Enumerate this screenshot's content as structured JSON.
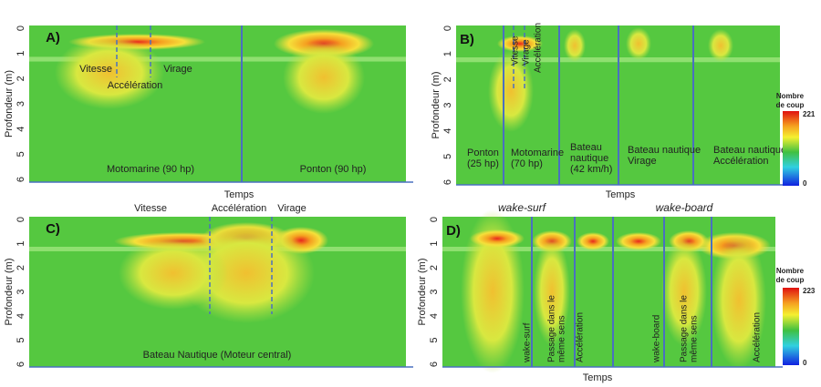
{
  "panels": [
    {
      "label": "A)",
      "y_axis_label": "Profondeur (m)",
      "y_ticks": [
        0,
        1,
        2,
        3,
        4,
        5,
        6
      ],
      "x_axis_label": "Temps",
      "annotations": [
        {
          "lines": [
            "Vitesse"
          ]
        },
        {
          "lines": [
            "Accélération"
          ]
        },
        {
          "lines": [
            "Virage"
          ]
        },
        {
          "lines": [
            "Motomarine (90 hp)"
          ]
        },
        {
          "lines": [
            "Ponton (90 hp)"
          ]
        }
      ]
    },
    {
      "label": "B)",
      "y_axis_label": "Profondeur (m)",
      "y_ticks": [
        0,
        1,
        2,
        3,
        4,
        5,
        6
      ],
      "x_axis_label": "Temps",
      "annotations": [
        {
          "lines": [
            "Vitesse"
          ]
        },
        {
          "lines": [
            "Virage"
          ]
        },
        {
          "lines": [
            "Accélération"
          ]
        },
        {
          "lines": [
            "Ponton",
            "(25 hp)"
          ]
        },
        {
          "lines": [
            "Motomarine",
            "(70 hp)"
          ]
        },
        {
          "lines": [
            "Bateau",
            "nautique",
            "(42 km/h)"
          ]
        },
        {
          "lines": [
            "Bateau nautique",
            "Virage"
          ]
        },
        {
          "lines": [
            "Bateau nautique",
            "Accélération"
          ]
        }
      ],
      "legend": {
        "title": [
          "Nombre",
          "de coup"
        ],
        "max": 221,
        "min": 0
      }
    },
    {
      "label": "C)",
      "y_axis_label": "Profondeur (m)",
      "y_ticks": [
        0,
        1,
        2,
        3,
        4,
        5,
        6
      ],
      "annotations": [
        {
          "lines": [
            "Vitesse"
          ]
        },
        {
          "lines": [
            "Accélération"
          ]
        },
        {
          "lines": [
            "Virage"
          ]
        },
        {
          "lines": [
            "Bateau Nautique (Moteur central)"
          ]
        }
      ]
    },
    {
      "label": "D)",
      "y_axis_label": "Profondeur (m)",
      "y_ticks": [
        0,
        1,
        2,
        3,
        4,
        5,
        6
      ],
      "x_axis_label": "Temps",
      "annotations": [
        {
          "lines": [
            "wake-surf"
          ]
        },
        {
          "lines": [
            "wake-board"
          ]
        },
        {
          "lines": [
            "wake-surf"
          ]
        },
        {
          "lines": [
            "Passage dans le",
            "même sens"
          ]
        },
        {
          "lines": [
            "Accélération"
          ]
        },
        {
          "lines": [
            "wake-board"
          ]
        },
        {
          "lines": [
            "Passage dans le",
            "même sens"
          ]
        },
        {
          "lines": [
            "Accélération"
          ]
        }
      ],
      "legend": {
        "title": [
          "Nombre",
          "de coup"
        ],
        "max": 223,
        "min": 0
      }
    }
  ]
}
